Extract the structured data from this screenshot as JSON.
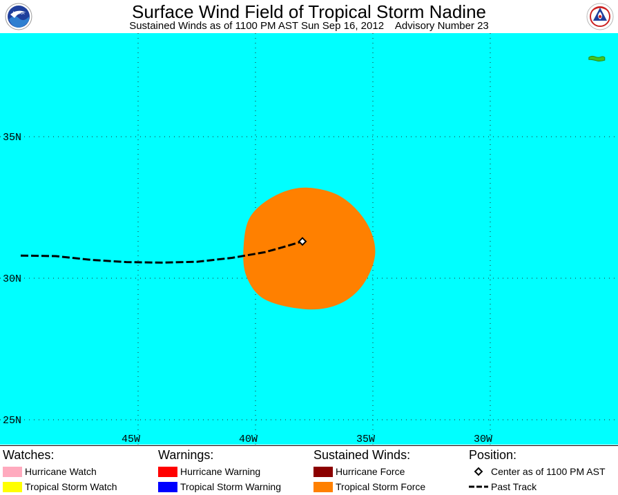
{
  "header": {
    "title": "Surface Wind Field of Tropical Storm Nadine",
    "subtitle": "Sustained Winds as of 1100 PM AST Sun Sep 16, 2012    Advisory Number 23",
    "left_logo": {
      "icon": "noaa-logo-icon",
      "text": "NOAA"
    },
    "right_logo": {
      "icon": "nws-logo-icon",
      "text": "NATIONAL WEATHER SERVICE"
    }
  },
  "map": {
    "ocean_color": "#00ffff",
    "land_color": "#44c321",
    "wind_field_color": "#ff8000",
    "track_color": "#000000",
    "lat_labels": [
      "35N",
      "30N",
      "25N"
    ],
    "lon_labels": [
      "45W",
      "40W",
      "35W",
      "30W"
    ],
    "center_marker": {
      "lon": -38.0,
      "lat": 31.3
    },
    "past_track": [
      {
        "lon": -50.0,
        "lat": 30.8
      },
      {
        "lon": -48.5,
        "lat": 30.78
      },
      {
        "lon": -47.0,
        "lat": 30.65
      },
      {
        "lon": -45.5,
        "lat": 30.57
      },
      {
        "lon": -44.0,
        "lat": 30.55
      },
      {
        "lon": -42.5,
        "lat": 30.58
      },
      {
        "lon": -41.0,
        "lat": 30.72
      },
      {
        "lon": -39.6,
        "lat": 30.92
      },
      {
        "lon": -38.9,
        "lat": 31.08
      },
      {
        "lon": -38.0,
        "lat": 31.3
      }
    ],
    "tropical_storm_wind_field_outline": [
      {
        "lon": -37.9,
        "lat": 33.2
      },
      {
        "lon": -39.2,
        "lat": 32.9
      },
      {
        "lon": -40.2,
        "lat": 32.2
      },
      {
        "lon": -40.5,
        "lat": 31.2
      },
      {
        "lon": -40.4,
        "lat": 30.1
      },
      {
        "lon": -39.6,
        "lat": 29.25
      },
      {
        "lon": -37.8,
        "lat": 28.9
      },
      {
        "lon": -36.4,
        "lat": 29.1
      },
      {
        "lon": -35.4,
        "lat": 29.8
      },
      {
        "lon": -34.9,
        "lat": 30.9
      },
      {
        "lon": -35.3,
        "lat": 32.0
      },
      {
        "lon": -36.4,
        "lat": 32.9
      }
    ],
    "land": {
      "name": "azores-island",
      "lon": -25.8,
      "lat": 37.8
    }
  },
  "legend": {
    "watches": {
      "heading": "Watches:",
      "items": [
        {
          "label": "Hurricane Watch",
          "color": "#ffaabe"
        },
        {
          "label": "Tropical Storm Watch",
          "color": "#ffff00"
        }
      ]
    },
    "warnings": {
      "heading": "Warnings:",
      "items": [
        {
          "label": "Hurricane Warning",
          "color": "#ff0000"
        },
        {
          "label": "Tropical Storm Warning",
          "color": "#0000ff"
        }
      ]
    },
    "sustained_winds": {
      "heading": "Sustained Winds:",
      "items": [
        {
          "label": "Hurricane Force",
          "color": "#8b0000"
        },
        {
          "label": "Tropical Storm Force",
          "color": "#ff8000"
        }
      ]
    },
    "position": {
      "heading": "Position:",
      "items": [
        {
          "label": "Center as of 1100 PM AST",
          "icon": "diamond-icon"
        },
        {
          "label": "Past Track",
          "icon": "dashed-line-icon"
        }
      ]
    }
  }
}
